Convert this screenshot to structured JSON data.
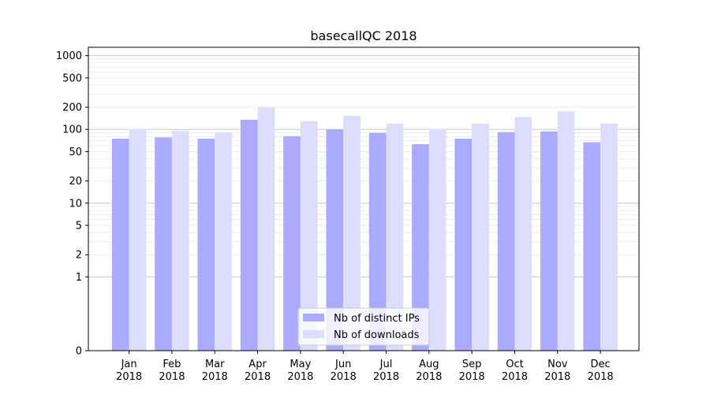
{
  "chart_data": {
    "type": "bar",
    "title": "basecallQC 2018",
    "xlabel": "",
    "ylabel": "",
    "yscale": "symlog",
    "ylim": [
      0,
      1300
    ],
    "yticks": [
      {
        "value": 0,
        "label": "0"
      },
      {
        "value": 1,
        "label": "1"
      },
      {
        "value": 2,
        "label": "2"
      },
      {
        "value": 5,
        "label": "5"
      },
      {
        "value": 10,
        "label": "10"
      },
      {
        "value": 20,
        "label": "20"
      },
      {
        "value": 50,
        "label": "50"
      },
      {
        "value": 100,
        "label": "100"
      },
      {
        "value": 200,
        "label": "200"
      },
      {
        "value": 500,
        "label": "500"
      },
      {
        "value": 1000,
        "label": "1000"
      }
    ],
    "grid": true,
    "legend_position": "bottom-center",
    "categories": [
      {
        "month": "Jan",
        "year": "2018"
      },
      {
        "month": "Feb",
        "year": "2018"
      },
      {
        "month": "Mar",
        "year": "2018"
      },
      {
        "month": "Apr",
        "year": "2018"
      },
      {
        "month": "May",
        "year": "2018"
      },
      {
        "month": "Jun",
        "year": "2018"
      },
      {
        "month": "Jul",
        "year": "2018"
      },
      {
        "month": "Aug",
        "year": "2018"
      },
      {
        "month": "Sep",
        "year": "2018"
      },
      {
        "month": "Oct",
        "year": "2018"
      },
      {
        "month": "Nov",
        "year": "2018"
      },
      {
        "month": "Dec",
        "year": "2018"
      }
    ],
    "series": [
      {
        "name": "Nb of distinct IPs",
        "color": "#aaaaff",
        "values": [
          75,
          78,
          75,
          135,
          81,
          100,
          90,
          63,
          75,
          92,
          94,
          67
        ]
      },
      {
        "name": "Nb of downloads",
        "color": "#ddddff",
        "values": [
          102,
          95,
          91,
          200,
          130,
          153,
          120,
          102,
          120,
          147,
          176,
          120
        ]
      }
    ]
  }
}
